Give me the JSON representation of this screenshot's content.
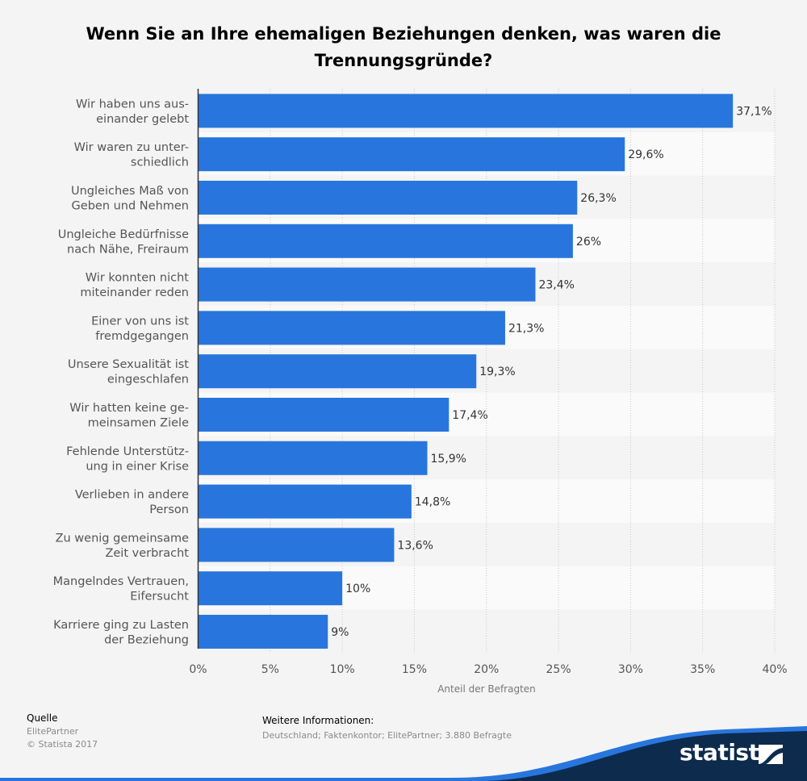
{
  "chart_data": {
    "type": "bar",
    "orientation": "horizontal",
    "title": "Wenn Sie an Ihre ehemaligen Beziehungen denken, was waren die Trennungsgründe?",
    "categories": [
      [
        "Wir haben uns aus-",
        "einander gelebt"
      ],
      [
        "Wir waren zu unter-",
        "schiedlich"
      ],
      [
        "Ungleiches Maß von",
        "Geben und Nehmen"
      ],
      [
        "Ungleiche Bedürfnisse",
        "nach Nähe, Freiraum"
      ],
      [
        "Wir konnten nicht",
        "miteinander reden"
      ],
      [
        "Einer von uns ist",
        "fremdgegangen"
      ],
      [
        "Unsere Sexualität ist",
        "eingeschlafen"
      ],
      [
        "Wir hatten keine ge-",
        "meinsamen Ziele"
      ],
      [
        "Fehlende Unterstütz-",
        "ung in einer Krise"
      ],
      [
        "Verlieben in andere",
        "Person"
      ],
      [
        "Zu wenig gemeinsame",
        "Zeit verbracht"
      ],
      [
        "Mangelndes Vertrauen,",
        "Eifersucht"
      ],
      [
        "Karriere ging zu Lasten",
        "der Beziehung"
      ]
    ],
    "values": [
      37.1,
      29.6,
      26.3,
      26,
      23.4,
      21.3,
      19.3,
      17.4,
      15.9,
      14.8,
      13.6,
      10,
      9
    ],
    "value_labels": [
      "37,1%",
      "29,6%",
      "26,3%",
      "26%",
      "23,4%",
      "21,3%",
      "19,3%",
      "17,4%",
      "15,9%",
      "14,8%",
      "13,6%",
      "10%",
      "9%"
    ],
    "xlim": [
      0,
      40
    ],
    "xticks": [
      0,
      5,
      10,
      15,
      20,
      25,
      30,
      35,
      40
    ],
    "xtick_labels": [
      "0%",
      "5%",
      "10%",
      "15%",
      "20%",
      "25%",
      "30%",
      "35%",
      "40%"
    ],
    "xlabel": "Anteil der Befragten",
    "ylabel": "",
    "grid": true,
    "legend": "none",
    "bar_color": "#2876dd"
  },
  "footer": {
    "source_label": "Quelle",
    "source_name": "ElitePartner",
    "copyright": "© Statista 2017",
    "info_label": "Weitere Informationen:",
    "info_text": "Deutschland; Faktenkontor; ElitePartner; 3.880 Befragte"
  },
  "brand": {
    "name": "statista",
    "wave_color": "#0d2b4c",
    "accent_color": "#2876dd"
  }
}
